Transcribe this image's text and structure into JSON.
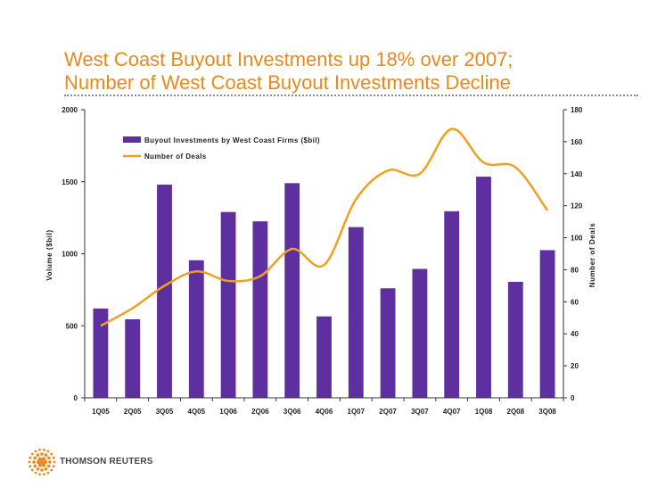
{
  "title_line1": "West Coast Buyout Investments up 18% over 2007;",
  "title_line2": "Number of West Coast Buyout Investments Decline",
  "brand": {
    "name": "THOMSON REUTERS",
    "color": "#E8891D"
  },
  "chart_data": {
    "type": "bar+line",
    "categories": [
      "1Q05",
      "2Q05",
      "3Q05",
      "4Q05",
      "1Q06",
      "2Q06",
      "3Q06",
      "4Q06",
      "1Q07",
      "2Q07",
      "3Q07",
      "4Q07",
      "1Q08",
      "2Q08",
      "3Q08"
    ],
    "series": [
      {
        "name": "Buyout Investments by West Coast Firms ($bil)",
        "type": "bar",
        "axis": "left",
        "color": "#5E2F9E",
        "values": [
          620,
          545,
          1480,
          955,
          1290,
          1225,
          1490,
          565,
          1185,
          760,
          895,
          1295,
          1535,
          805,
          1025
        ]
      },
      {
        "name": "Number of Deals",
        "type": "line",
        "axis": "right",
        "color": "#F0A020",
        "values": [
          45,
          56,
          70,
          79,
          73,
          76,
          93,
          83,
          124,
          142,
          140,
          168,
          147,
          144,
          117
        ]
      }
    ],
    "ylabel_left": "Volume ($bil)",
    "ylabel_right": "Number of Deals",
    "ylim_left": [
      0,
      2000
    ],
    "ylim_right": [
      0,
      180
    ],
    "yticks_left": [
      "0",
      "500",
      "1000",
      "1500",
      "2000"
    ],
    "yticks_right": [
      "0",
      "20",
      "40",
      "60",
      "80",
      "100",
      "120",
      "140",
      "160",
      "180"
    ],
    "grid": false,
    "legend_position": "top-left"
  }
}
